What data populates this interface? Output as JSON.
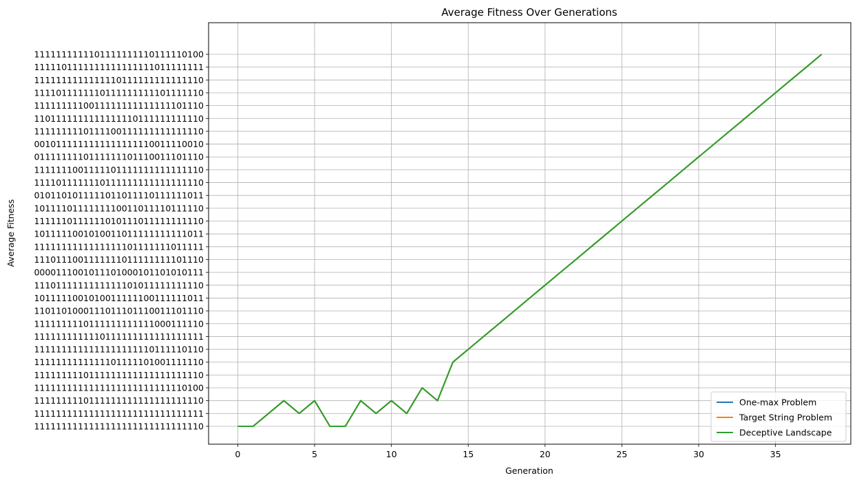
{
  "chart_data": {
    "type": "line",
    "title": "Average Fitness Over Generations",
    "xlabel": "Generation",
    "ylabel": "Average Fitness",
    "xlim": [
      -1.9,
      39.9
    ],
    "x_ticks": [
      0,
      5,
      10,
      15,
      20,
      25,
      30,
      35
    ],
    "y_categories": [
      "1111111111111111111111111111110",
      "1111111111111111111111111111111",
      "1111111110111111111111111111110",
      "1111111111111111111111111110100",
      "1111111110111111111111111111110",
      "1111111111111101111101001111110",
      "1111111111111111111110111110110",
      "1111111111110111111111111111111",
      "1111111110111111111111000111110",
      "1101101000111011101110011101110",
      "1011111001010011111100111111011",
      "1110111111111111101011111111110",
      "0000111001011101000101101010111",
      "1110111001111111011111111101110",
      "1111111111111111101111111011111",
      "1011111001010011011111111111011",
      "1111110111111010111011111111110",
      "1011110111111110011011110111110",
      "0101101011111011011110111111011",
      "1111011111110111111111111111110",
      "1111111001111101111111111111110",
      "0111111110111111101110011101110",
      "0010111111111111111110011110010",
      "1111111110111100111111111111110",
      "1101111111111111110111111111110",
      "1111111110011111111111111101110",
      "1111011111110111111111101111110",
      "1111111111111110111111111111110",
      "1111101111111111111111011111111",
      "1111111111101111111110111110100"
    ],
    "grid": true,
    "legend_position": "lower right",
    "series": [
      {
        "name": "One-max Problem",
        "color": "#1f77b4",
        "x": [
          0,
          1,
          2,
          3,
          4,
          5,
          6,
          7,
          8,
          9,
          10,
          11,
          12,
          13,
          14,
          15,
          16,
          17,
          18,
          19,
          20,
          21,
          22,
          23,
          24,
          25,
          26,
          27,
          28,
          29,
          30,
          31,
          32,
          33,
          34,
          35,
          36,
          37,
          38
        ],
        "y": [
          "1111111111111111111111111111110",
          "1111111111111111111111111111110",
          "1111111111111111111111111111111",
          "1111111110111111111111111111110",
          "1111111111111111111111111111111",
          "1111111110111111111111111111110",
          "1111111111111111111111111111110",
          "1111111111111111111111111111110",
          "1111111110111111111111111111110",
          "1111111111111111111111111111111",
          "1111111110111111111111111111110",
          "1111111111111111111111111111111",
          "1111111111111111111111111110100",
          "1111111110111111111111111111110",
          "1111111111111101111101001111110",
          "1111111111111111111110111110110",
          "1111111111110111111111111111111",
          "1111111110111111111111000111110",
          "1101101000111011101110011101110",
          "1011111001010011111100111111011",
          "1110111111111111101011111111110",
          "0000111001011101000101101010111",
          "1110111001111111011111111101110",
          "1111111111111111101111111011111",
          "1011111001010011011111111111011",
          "1111110111111010111011111111110",
          "1011110111111110011011110111110",
          "0101101011111011011110111111011",
          "1111011111110111111111111111110",
          "1111111001111101111111111111110",
          "0111111110111111101110011101110",
          "0010111111111111111110011110010",
          "1111111110111100111111111111110",
          "1101111111111111110111111111110",
          "1111111110011111111111111101110",
          "1111011111110111111111101111110",
          "1111111111111110111111111111110",
          "1111101111111111111111011111111",
          "1111111111101111111110111110100"
        ]
      },
      {
        "name": "Target String Problem",
        "color": "#ff7f0e",
        "x": [
          0,
          1,
          2,
          3,
          4,
          5,
          6,
          7,
          8,
          9,
          10,
          11,
          12,
          13,
          14,
          15,
          16,
          17,
          18,
          19,
          20,
          21,
          22,
          23,
          24,
          25,
          26,
          27,
          28,
          29,
          30,
          31,
          32,
          33,
          34,
          35,
          36,
          37,
          38
        ],
        "y": [
          "1111111111111111111111111111110",
          "1111111111111111111111111111110",
          "1111111111111111111111111111111",
          "1111111110111111111111111111110",
          "1111111111111111111111111111111",
          "1111111110111111111111111111110",
          "1111111111111111111111111111110",
          "1111111111111111111111111111110",
          "1111111110111111111111111111110",
          "1111111111111111111111111111111",
          "1111111110111111111111111111110",
          "1111111111111111111111111111111",
          "1111111111111111111111111110100",
          "1111111110111111111111111111110",
          "1111111111111101111101001111110",
          "1111111111111111111110111110110",
          "1111111111110111111111111111111",
          "1111111110111111111111000111110",
          "1101101000111011101110011101110",
          "1011111001010011111100111111011",
          "1110111111111111101011111111110",
          "0000111001011101000101101010111",
          "1110111001111111011111111101110",
          "1111111111111111101111111011111",
          "1011111001010011011111111111011",
          "1111110111111010111011111111110",
          "1011110111111110011011110111110",
          "0101101011111011011110111111011",
          "1111011111110111111111111111110",
          "1111111001111101111111111111110",
          "0111111110111111101110011101110",
          "0010111111111111111110011110010",
          "1111111110111100111111111111110",
          "1101111111111111110111111111110",
          "1111111110011111111111111101110",
          "1111011111110111111111101111110",
          "1111111111111110111111111111110",
          "1111101111111111111111011111111",
          "1111111111101111111110111110100"
        ]
      },
      {
        "name": "Deceptive Landscape",
        "color": "#2ca02c",
        "x": [
          0,
          1,
          2,
          3,
          4,
          5,
          6,
          7,
          8,
          9,
          10,
          11,
          12,
          13,
          14,
          15,
          16,
          17,
          18,
          19,
          20,
          21,
          22,
          23,
          24,
          25,
          26,
          27,
          28,
          29,
          30,
          31,
          32,
          33,
          34,
          35,
          36,
          37,
          38
        ],
        "y": [
          "1111111111111111111111111111110",
          "1111111111111111111111111111110",
          "1111111111111111111111111111111",
          "1111111110111111111111111111110",
          "1111111111111111111111111111111",
          "1111111110111111111111111111110",
          "1111111111111111111111111111110",
          "1111111111111111111111111111110",
          "1111111110111111111111111111110",
          "1111111111111111111111111111111",
          "1111111110111111111111111111110",
          "1111111111111111111111111111111",
          "1111111111111111111111111110100",
          "1111111110111111111111111111110",
          "1111111111111101111101001111110",
          "1111111111111111111110111110110",
          "1111111111110111111111111111111",
          "1111111110111111111111000111110",
          "1101101000111011101110011101110",
          "1011111001010011111100111111011",
          "1110111111111111101011111111110",
          "0000111001011101000101101010111",
          "1110111001111111011111111101110",
          "1111111111111111101111111011111",
          "1011111001010011011111111111011",
          "1111110111111010111011111111110",
          "1011110111111110011011110111110",
          "0101101011111011011110111111011",
          "1111011111110111111111111111110",
          "1111111001111101111111111111110",
          "0111111110111111101110011101110",
          "0010111111111111111110011110010",
          "1111111110111100111111111111110",
          "1101111111111111110111111111110",
          "1111111110011111111111111101110",
          "1111011111110111111111101111110",
          "1111111111111110111111111111110",
          "1111101111111111111111011111111",
          "1111111111101111111110111110100"
        ]
      }
    ]
  }
}
